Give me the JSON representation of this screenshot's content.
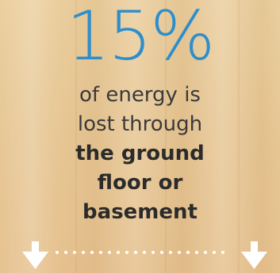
{
  "headline": "15%",
  "text": {
    "regular_lines": [
      "of energy is",
      "lost through"
    ],
    "bold_lines": [
      "the ground",
      "floor or",
      "basement"
    ]
  }
}
